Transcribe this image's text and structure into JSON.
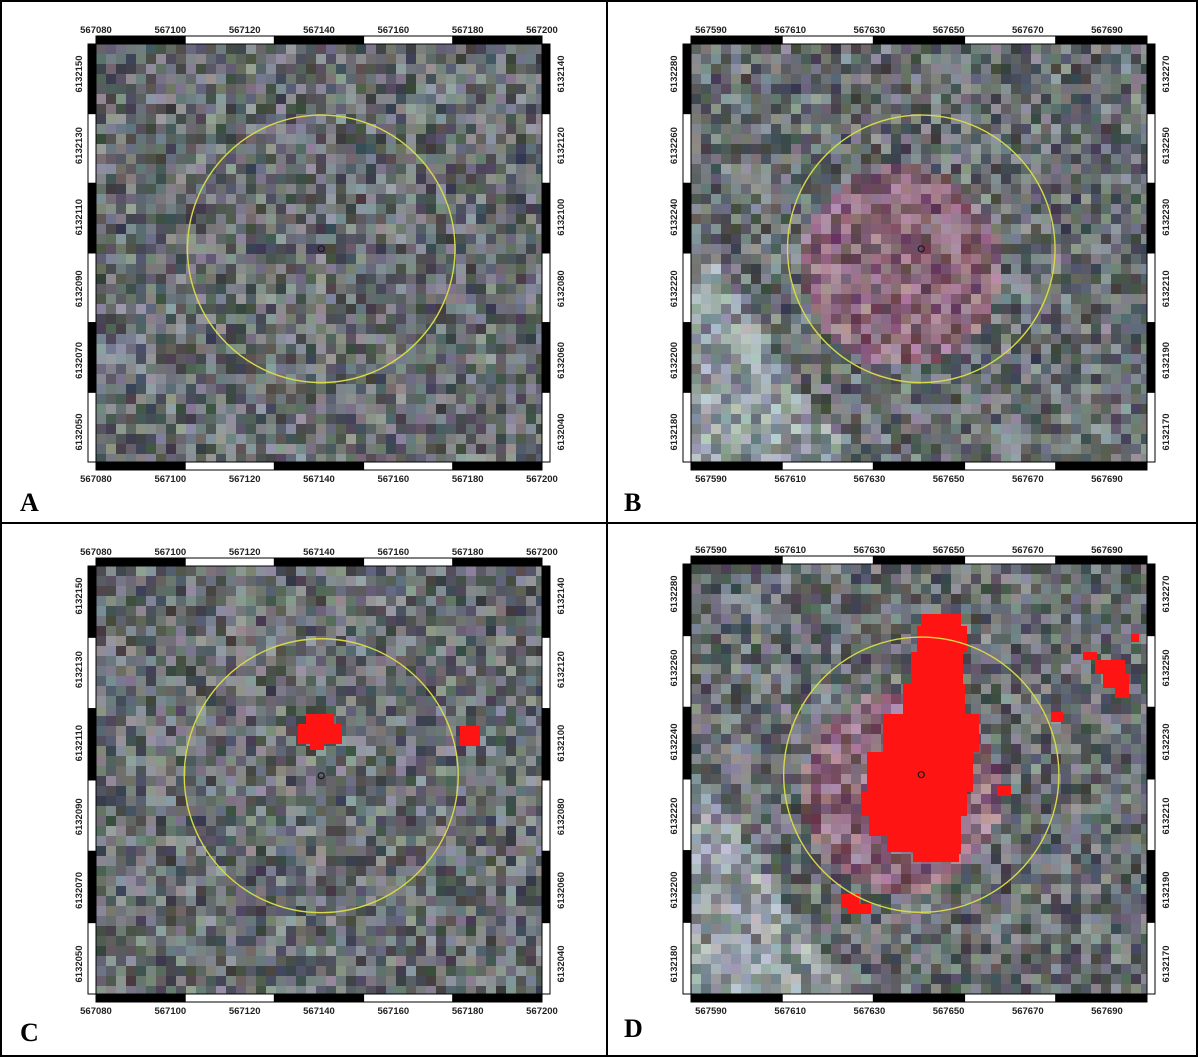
{
  "panels": [
    {
      "letter": "A",
      "x_ticks_top": [
        "567080",
        "567100",
        "567120",
        "567140",
        "567160",
        "567180",
        "567200"
      ],
      "x_ticks_bottom": [
        "567080",
        "567100",
        "567120",
        "567140",
        "567160",
        "567180",
        "567200"
      ],
      "y_ticks_left": [
        "6132150",
        "6132130",
        "6132110",
        "6132090",
        "6132070",
        "6132050"
      ],
      "y_ticks_right": [
        "6132140",
        "6132120",
        "6132100",
        "6132080",
        "6132060",
        "6132040"
      ],
      "tone": "neutral",
      "red_cells": []
    },
    {
      "letter": "B",
      "x_ticks_top": [
        "567590",
        "567610",
        "567630",
        "567650",
        "567670",
        "567690"
      ],
      "x_ticks_bottom": [
        "567590",
        "567610",
        "567630",
        "567650",
        "567670",
        "567690"
      ],
      "y_ticks_left": [
        "6132280",
        "6132260",
        "6132240",
        "6132220",
        "6132200",
        "6132180"
      ],
      "y_ticks_right": [
        "6132270",
        "6132250",
        "6132230",
        "6132210",
        "6132190",
        "6132170"
      ],
      "tone": "pinkish",
      "red_cells": []
    },
    {
      "letter": "C",
      "x_ticks_top": [
        "567080",
        "567100",
        "567120",
        "567140",
        "567160",
        "567180",
        "567200"
      ],
      "x_ticks_bottom": [
        "567080",
        "567100",
        "567120",
        "567140",
        "567160",
        "567180",
        "567200"
      ],
      "y_ticks_left": [
        "6132150",
        "6132130",
        "6132110",
        "6132090",
        "6132070",
        "6132050"
      ],
      "y_ticks_right": [
        "6132140",
        "6132120",
        "6132100",
        "6132080",
        "6132060",
        "6132040"
      ],
      "tone": "neutral",
      "red_cells": "C"
    },
    {
      "letter": "D",
      "x_ticks_top": [
        "567590",
        "567610",
        "567630",
        "567650",
        "567670",
        "567690"
      ],
      "x_ticks_bottom": [
        "567590",
        "567610",
        "567630",
        "567650",
        "567670",
        "567690"
      ],
      "y_ticks_left": [
        "6132280",
        "6132260",
        "6132240",
        "6132220",
        "6132200",
        "6132180"
      ],
      "y_ticks_right": [
        "6132270",
        "6132250",
        "6132230",
        "6132210",
        "6132190",
        "6132170"
      ],
      "tone": "pinkish",
      "red_cells": "D"
    }
  ],
  "colors": {
    "buffer_circle": "#d8d84a",
    "highlight": "#ff1414",
    "border": "#000000"
  }
}
